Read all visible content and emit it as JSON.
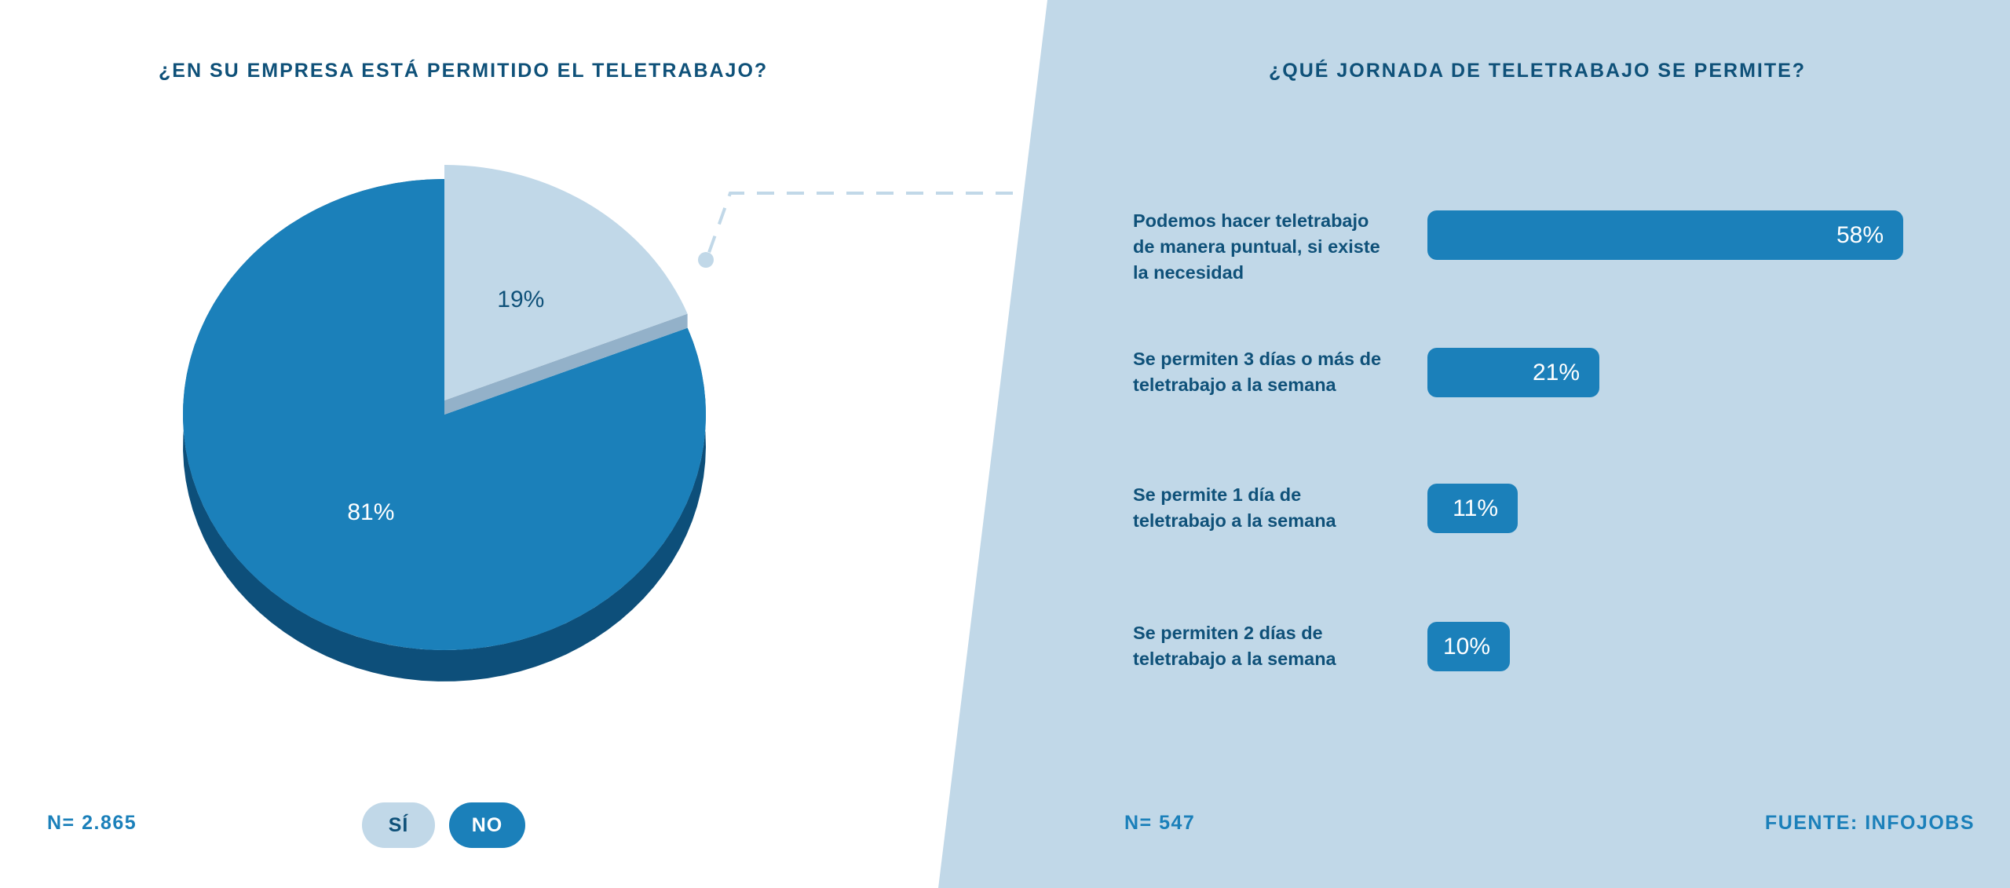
{
  "colors": {
    "primary": "#1b80ba",
    "primary_dark": "#0d4f7a",
    "light": "#c1d8e8",
    "light_shadow": "#93b1c9",
    "title": "#0f5179"
  },
  "left": {
    "title": "¿EN SU EMPRESA ESTÁ PERMITIDO EL TELETRABAJO?",
    "n": "N= 2.865"
  },
  "right": {
    "title": "¿QUÉ JORNADA DE TELETRABAJO SE PERMITE?",
    "n": "N= 547",
    "source": "FUENTE: INFOJOBS"
  },
  "legend": [
    {
      "label": "SÍ",
      "color": "#c1d8e8"
    },
    {
      "label": "NO",
      "color": "#1b80ba"
    }
  ],
  "chart_data": [
    {
      "type": "pie",
      "title": "¿EN SU EMPRESA ESTÁ PERMITIDO EL TELETRABAJO?",
      "slices": [
        {
          "label": "SÍ",
          "value": 19,
          "display": "19%"
        },
        {
          "label": "NO",
          "value": 81,
          "display": "81%"
        }
      ]
    },
    {
      "type": "bar",
      "orientation": "horizontal",
      "title": "¿QUÉ JORNADA DE TELETRABAJO SE PERMITE?",
      "categories": [
        "Podemos hacer teletrabajo de manera puntual, si existe la necesidad",
        "Se permiten 3 días o más de teletrabajo a la semana",
        "Se permite 1 día de teletrabajo a la semana",
        "Se permiten 2 días de teletrabajo a la semana"
      ],
      "values": [
        58,
        21,
        11,
        10
      ],
      "display": [
        "58%",
        "21%",
        "11%",
        "10%"
      ],
      "xlim": [
        0,
        100
      ]
    }
  ]
}
